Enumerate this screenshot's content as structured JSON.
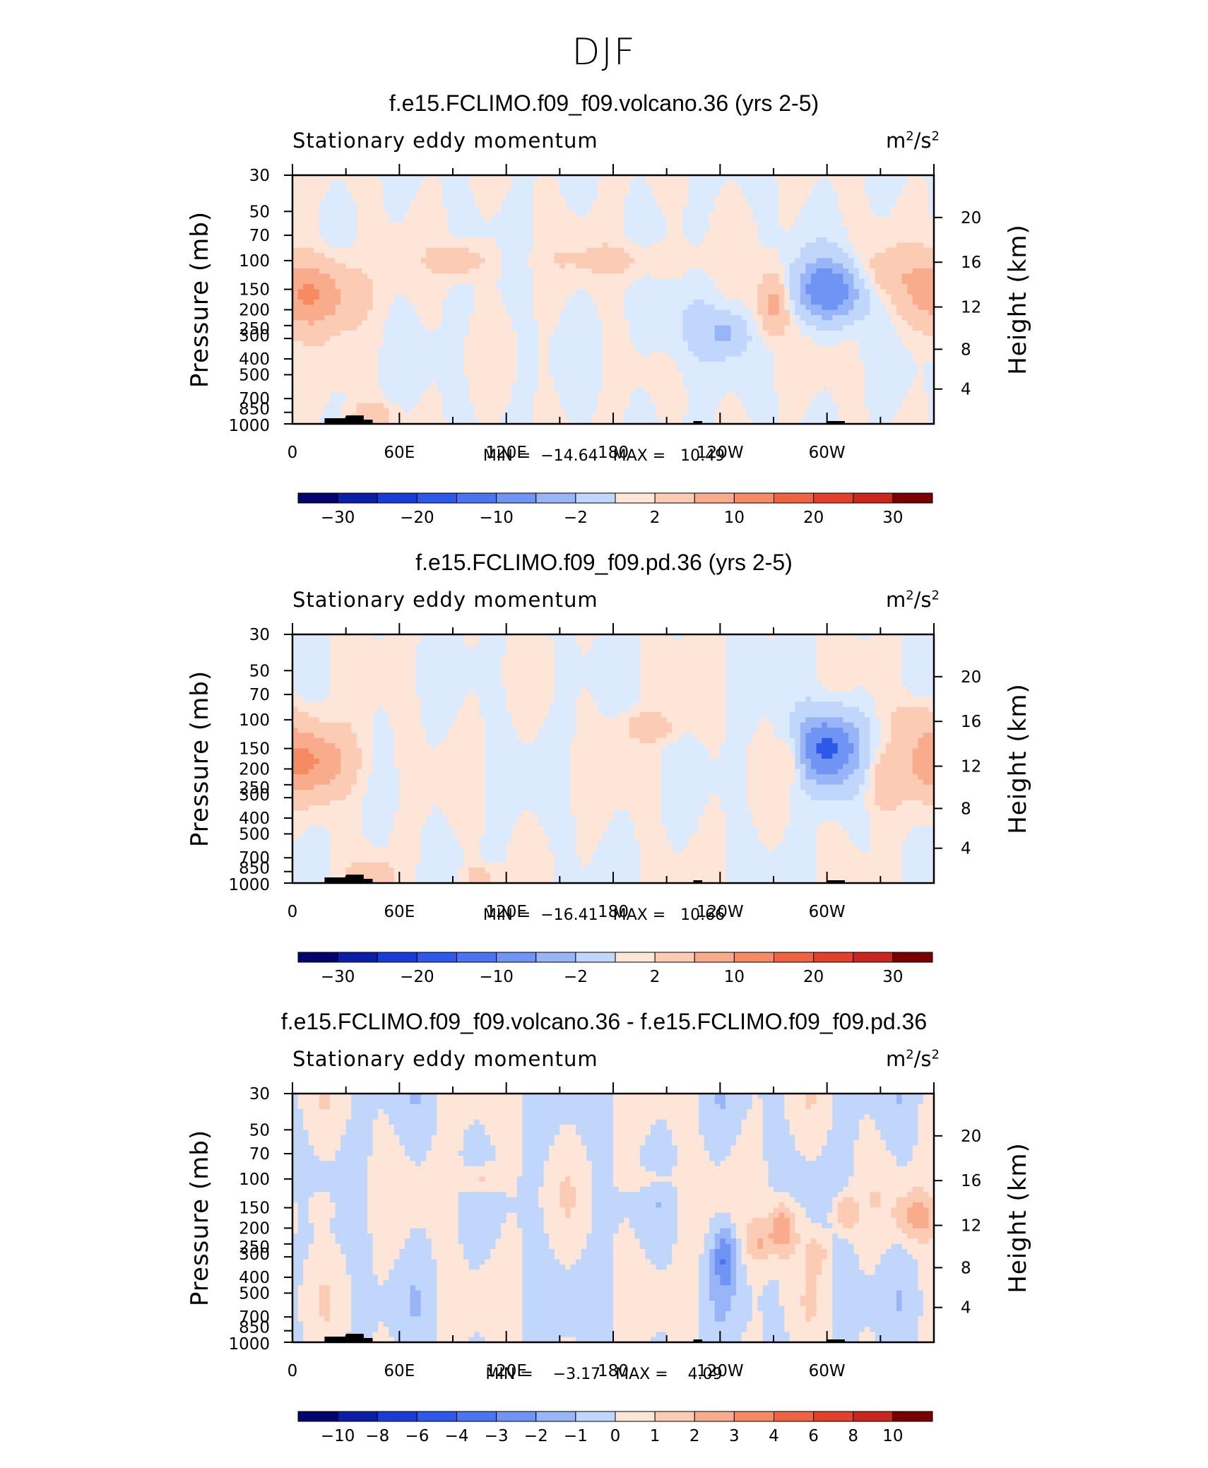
{
  "title": "DJF",
  "chart_data": [
    {
      "type": "heatmap",
      "title": "f.e15.FCLIMO.f09_f09.volcano.36 (yrs 2-5)",
      "subtitle": "Stationary eddy momentum",
      "units": "m²/s²",
      "ylabel": "Pressure (mb)",
      "y2label": "Height (km)",
      "x_ticks": [
        "0",
        "60E",
        "120E",
        "180",
        "120W",
        "60W"
      ],
      "y_ticks": [
        "30",
        "50",
        "70",
        "100",
        "150",
        "200",
        "250",
        "300",
        "400",
        "500",
        "700",
        "850",
        "1000"
      ],
      "y2_ticks": [
        "20",
        "16",
        "12",
        "8",
        "4"
      ],
      "min_max_text": "MIN =  −14.64   MAX =   10.49",
      "colorbar_labels": [
        "−30",
        "−20",
        "−10",
        "−2",
        "2",
        "10",
        "20",
        "30"
      ],
      "features": [
        {
          "lon": 10,
          "p": 160,
          "value": 10.5,
          "sx": 18,
          "sy": 0.35
        },
        {
          "lon": 95,
          "p": 100,
          "value": 4,
          "sx": 12,
          "sy": 0.18
        },
        {
          "lon": 185,
          "p": 100,
          "value": 3,
          "sx": 25,
          "sy": 0.18
        },
        {
          "lon": 270,
          "p": 180,
          "value": 8,
          "sx": 6,
          "sy": 0.3
        },
        {
          "lon": 302,
          "p": 150,
          "value": -14.6,
          "sx": 14,
          "sy": 0.3
        },
        {
          "lon": 243,
          "p": 280,
          "value": -6,
          "sx": 8,
          "sy": 0.2
        },
        {
          "lon": 330,
          "p": 120,
          "value": 4,
          "sx": 14,
          "sy": 0.25
        },
        {
          "lon": 220,
          "p": 250,
          "value": -2.5,
          "sx": 14,
          "sy": 0.4
        },
        {
          "lon": 45,
          "p": 880,
          "value": 5,
          "sx": 8,
          "sy": 0.12
        }
      ]
    },
    {
      "type": "heatmap",
      "title": "f.e15.FCLIMO.f09_f09.pd.36 (yrs 2-5)",
      "subtitle": "Stationary eddy momentum",
      "units": "m²/s²",
      "ylabel": "Pressure (mb)",
      "y2label": "Height (km)",
      "x_ticks": [
        "0",
        "60E",
        "120E",
        "180",
        "120W",
        "60W"
      ],
      "y_ticks": [
        "30",
        "50",
        "70",
        "100",
        "150",
        "200",
        "250",
        "300",
        "400",
        "500",
        "700",
        "850",
        "1000"
      ],
      "y2_ticks": [
        "20",
        "16",
        "12",
        "8",
        "4"
      ],
      "min_max_text": "MIN =  −16.41   MAX =   10.66",
      "colorbar_labels": [
        "−30",
        "−20",
        "−10",
        "−2",
        "2",
        "10",
        "20",
        "30"
      ],
      "features": [
        {
          "lon": 8,
          "p": 180,
          "value": 10.7,
          "sx": 18,
          "sy": 0.35
        },
        {
          "lon": 200,
          "p": 110,
          "value": 4,
          "sx": 12,
          "sy": 0.15
        },
        {
          "lon": 300,
          "p": 150,
          "value": -16.4,
          "sx": 13,
          "sy": 0.35
        },
        {
          "lon": 280,
          "p": 170,
          "value": 5,
          "sx": 5,
          "sy": 0.25
        },
        {
          "lon": 330,
          "p": 250,
          "value": 4,
          "sx": 6,
          "sy": 0.3
        },
        {
          "lon": 350,
          "p": 100,
          "value": 3,
          "sx": 10,
          "sy": 0.2
        },
        {
          "lon": 45,
          "p": 880,
          "value": 5,
          "sx": 8,
          "sy": 0.12
        },
        {
          "lon": 105,
          "p": 900,
          "value": 4,
          "sx": 6,
          "sy": 0.1
        }
      ]
    },
    {
      "type": "heatmap",
      "title": "f.e15.FCLIMO.f09_f09.volcano.36 - f.e15.FCLIMO.f09_f09.pd.36",
      "subtitle": "Stationary eddy momentum",
      "units": "m²/s²",
      "ylabel": "Pressure (mb)",
      "y2label": "Height (km)",
      "x_ticks": [
        "0",
        "60E",
        "120E",
        "180",
        "120W",
        "60W"
      ],
      "y_ticks": [
        "30",
        "50",
        "70",
        "100",
        "150",
        "200",
        "250",
        "300",
        "400",
        "500",
        "700",
        "850",
        "1000"
      ],
      "y2_ticks": [
        "20",
        "16",
        "12",
        "8",
        "4"
      ],
      "min_max_text": "MIN =    −3.17   MAX =    4.09",
      "colorbar_labels": [
        "−10",
        "−8",
        "−6",
        "−4",
        "−3",
        "−2",
        "−1",
        "0",
        "1",
        "2",
        "3",
        "4",
        "6",
        "8",
        "10"
      ],
      "features": [
        {
          "lon": 275,
          "p": 200,
          "value": 4.1,
          "sx": 6,
          "sy": 0.3
        },
        {
          "lon": 243,
          "p": 300,
          "value": -3.2,
          "sx": 5,
          "sy": 0.3
        },
        {
          "lon": 105,
          "p": 100,
          "value": 2.5,
          "sx": 8,
          "sy": 0.15
        },
        {
          "lon": 310,
          "p": 160,
          "value": 3,
          "sx": 5,
          "sy": 0.2
        },
        {
          "lon": 350,
          "p": 170,
          "value": 3,
          "sx": 8,
          "sy": 0.25
        },
        {
          "lon": 262,
          "p": 250,
          "value": 2,
          "sx": 5,
          "sy": 0.2
        },
        {
          "lon": 15,
          "p": 150,
          "value": 1.5,
          "sx": 5,
          "sy": 0.15
        },
        {
          "lon": 200,
          "p": 100,
          "value": 1.5,
          "sx": 10,
          "sy": 0.12
        },
        {
          "lon": 295,
          "p": 280,
          "value": 1.5,
          "sx": 5,
          "sy": 0.2
        }
      ]
    }
  ]
}
